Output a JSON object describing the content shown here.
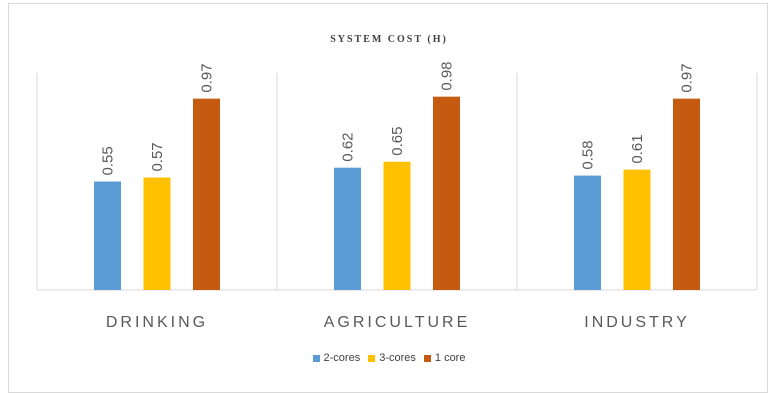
{
  "chart_data": {
    "type": "bar",
    "title": "SYSTEM COST (H)",
    "categories": [
      "DRINKING",
      "AGRICULTURE",
      "INDUSTRY"
    ],
    "series": [
      {
        "name": "2-cores",
        "values": [
          0.55,
          0.62,
          0.58
        ],
        "color": "#5b9bd5"
      },
      {
        "name": "3-cores",
        "values": [
          0.57,
          0.65,
          0.61
        ],
        "color": "#ffc000"
      },
      {
        "name": "1 core",
        "values": [
          0.97,
          0.98,
          0.97
        ],
        "color": "#c55a11"
      }
    ],
    "ylim": [
      0,
      1.1
    ],
    "grid": false,
    "legend_position": "bottom",
    "data_labels": true
  }
}
